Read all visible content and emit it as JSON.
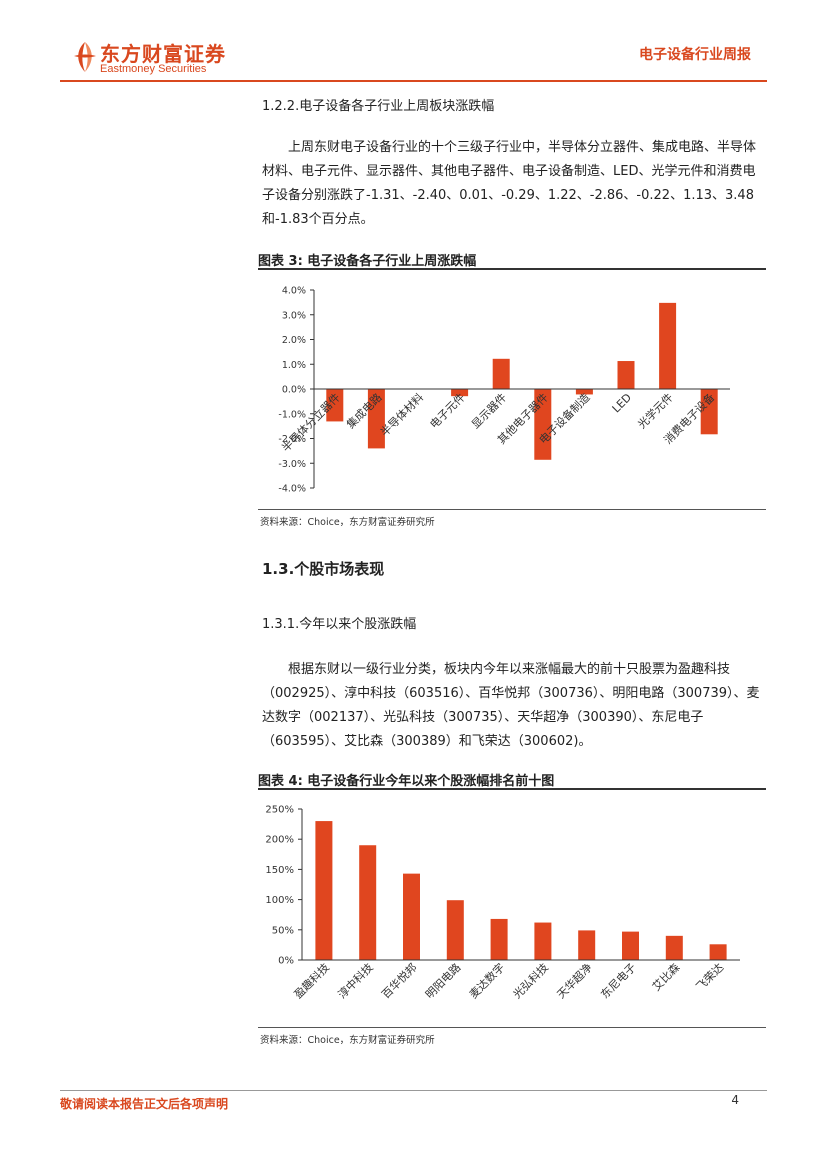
{
  "header": {
    "logo_cn": "东方财富证券",
    "logo_en": "Eastmoney Securities",
    "report_title": "电子设备行业周报"
  },
  "section_122": {
    "heading": "1.2.2.电子设备各子行业上周板块涨跌幅",
    "paragraph": "上周东财电子设备行业的十个三级子行业中，半导体分立器件、集成电路、半导体材料、电子元件、显示器件、其他电子器件、电子设备制造、LED、光学元件和消费电子设备分别涨跌了-1.31、-2.40、0.01、-0.29、1.22、-2.86、-0.22、1.13、3.48和-1.83个百分点。"
  },
  "figure3": {
    "title": "图表 3:  电子设备各子行业上周涨跌幅",
    "source": "资料来源：Choice，东方财富证券研究所"
  },
  "section_13": {
    "heading": "1.3.个股市场表现"
  },
  "section_131": {
    "heading": "1.3.1.今年以来个股涨跌幅",
    "paragraph": "根据东财以一级行业分类，板块内今年以来涨幅最大的前十只股票为盈趣科技（002925）、淳中科技（603516）、百华悦邦（300736）、明阳电路（300739）、麦达数字（002137）、光弘科技（300735）、天华超净（300390）、东尼电子（603595）、艾比森（300389）和飞荣达（300602)。"
  },
  "figure4": {
    "title": "图表 4:  电子设备行业今年以来个股涨幅排名前十图",
    "source": "资料来源：Choice，东方财富证券研究所"
  },
  "chart_data": [
    {
      "type": "bar",
      "title": "",
      "categories": [
        "半导体分立器件",
        "集成电路",
        "半导体材料",
        "电子元件",
        "显示器件",
        "其他电子器件",
        "电子设备制造",
        "LED",
        "光学元件",
        "消费电子设备"
      ],
      "values": [
        -1.31,
        -2.4,
        0.01,
        -0.29,
        1.22,
        -2.86,
        -0.22,
        1.13,
        3.48,
        -1.83
      ],
      "y_ticks": [
        "4.0%",
        "3.0%",
        "2.0%",
        "1.0%",
        "0.0%",
        "-1.0%",
        "-2.0%",
        "-3.0%",
        "-4.0%"
      ],
      "ylim": [
        -4,
        4
      ],
      "color": "#e0461f",
      "grid": false
    },
    {
      "type": "bar",
      "title": "",
      "categories": [
        "盈趣科技",
        "淳中科技",
        "百华悦邦",
        "明阳电路",
        "麦达数字",
        "光弘科技",
        "天华超净",
        "东尼电子",
        "艾比森",
        "飞荣达"
      ],
      "values": [
        230,
        190,
        143,
        99,
        68,
        62,
        49,
        47,
        40,
        26
      ],
      "y_ticks": [
        "250%",
        "200%",
        "150%",
        "100%",
        "50%",
        "0%"
      ],
      "ylim": [
        0,
        250
      ],
      "color": "#e0461f",
      "grid": false
    }
  ],
  "footer": {
    "disclaimer": "敬请阅读本报告正文后各项声明",
    "page": "4"
  }
}
